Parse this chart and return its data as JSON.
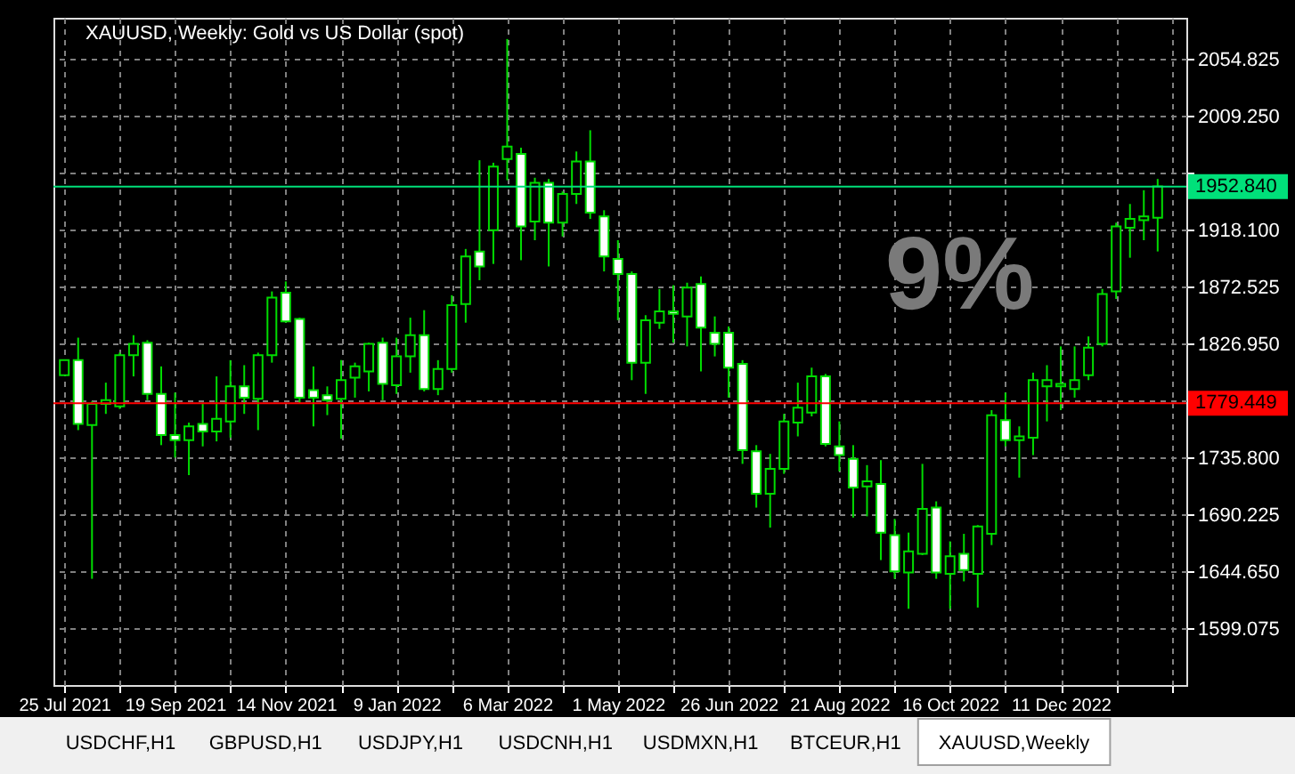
{
  "chart_data": {
    "type": "candlestick",
    "title": "XAUUSD, Weekly: Gold vs US Dollar (spot)",
    "color": "#00dc00",
    "x": [
      "2021-07-25",
      "2021-08-01",
      "2021-08-08",
      "2021-08-15",
      "2021-08-22",
      "2021-08-29",
      "2021-09-05",
      "2021-09-12",
      "2021-09-19",
      "2021-09-26",
      "2021-10-03",
      "2021-10-10",
      "2021-10-17",
      "2021-10-24",
      "2021-10-31",
      "2021-11-07",
      "2021-11-14",
      "2021-11-21",
      "2021-11-28",
      "2021-12-05",
      "2021-12-12",
      "2021-12-19",
      "2021-12-26",
      "2022-01-02",
      "2022-01-09",
      "2022-01-16",
      "2022-01-23",
      "2022-01-30",
      "2022-02-06",
      "2022-02-13",
      "2022-02-20",
      "2022-02-27",
      "2022-03-06",
      "2022-03-13",
      "2022-03-20",
      "2022-03-27",
      "2022-04-03",
      "2022-04-10",
      "2022-04-17",
      "2022-04-24",
      "2022-05-01",
      "2022-05-08",
      "2022-05-15",
      "2022-05-22",
      "2022-05-29",
      "2022-06-05",
      "2022-06-12",
      "2022-06-19",
      "2022-06-26",
      "2022-07-03",
      "2022-07-10",
      "2022-07-17",
      "2022-07-24",
      "2022-07-31",
      "2022-08-07",
      "2022-08-14",
      "2022-08-21",
      "2022-08-28",
      "2022-09-04",
      "2022-09-11",
      "2022-09-18",
      "2022-09-25",
      "2022-10-02",
      "2022-10-09",
      "2022-10-16",
      "2022-10-23",
      "2022-10-30",
      "2022-11-06",
      "2022-11-13",
      "2022-11-20",
      "2022-11-27",
      "2022-12-04",
      "2022-12-11",
      "2022-12-18",
      "2022-12-25",
      "2023-01-01",
      "2023-01-08",
      "2023-01-15",
      "2023-01-22",
      "2023-01-29"
    ],
    "ohlc": [
      [
        1802,
        1814,
        1802,
        1814
      ],
      [
        1814,
        1832,
        1758,
        1763
      ],
      [
        1762,
        1781,
        1639,
        1779
      ],
      [
        1779,
        1796,
        1771,
        1782
      ],
      [
        1777,
        1820,
        1775,
        1818
      ],
      [
        1818,
        1834,
        1801,
        1827
      ],
      [
        1828,
        1830,
        1782,
        1787
      ],
      [
        1787,
        1809,
        1746,
        1754
      ],
      [
        1754,
        1788,
        1736,
        1750
      ],
      [
        1750,
        1764,
        1722,
        1761
      ],
      [
        1763,
        1780,
        1745,
        1757
      ],
      [
        1757,
        1801,
        1749,
        1767
      ],
      [
        1765,
        1814,
        1752,
        1793
      ],
      [
        1793,
        1810,
        1771,
        1784
      ],
      [
        1783,
        1820,
        1758,
        1818
      ],
      [
        1818,
        1869,
        1812,
        1864
      ],
      [
        1868,
        1877,
        1844,
        1845
      ],
      [
        1847,
        1848,
        1779,
        1784
      ],
      [
        1790,
        1809,
        1761,
        1784
      ],
      [
        1786,
        1793,
        1770,
        1782
      ],
      [
        1783,
        1814,
        1751,
        1798
      ],
      [
        1800,
        1812,
        1784,
        1809
      ],
      [
        1805,
        1828,
        1789,
        1827
      ],
      [
        1828,
        1832,
        1782,
        1795
      ],
      [
        1794,
        1832,
        1787,
        1817
      ],
      [
        1817,
        1848,
        1804,
        1834
      ],
      [
        1834,
        1854,
        1789,
        1791
      ],
      [
        1791,
        1814,
        1786,
        1807
      ],
      [
        1807,
        1866,
        1804,
        1858
      ],
      [
        1859,
        1903,
        1844,
        1897
      ],
      [
        1901,
        1974,
        1878,
        1889
      ],
      [
        1918,
        1972,
        1891,
        1969
      ],
      [
        1975,
        2071,
        1958,
        1985
      ],
      [
        1979,
        1984,
        1894,
        1921
      ],
      [
        1925,
        1960,
        1910,
        1956
      ],
      [
        1956,
        1959,
        1889,
        1924
      ],
      [
        1924,
        1949,
        1913,
        1947
      ],
      [
        1947,
        1981,
        1939,
        1973
      ],
      [
        1973,
        1998,
        1927,
        1932
      ],
      [
        1929,
        1934,
        1885,
        1897
      ],
      [
        1895,
        1910,
        1846,
        1883
      ],
      [
        1883,
        1885,
        1798,
        1812
      ],
      [
        1812,
        1850,
        1787,
        1846
      ],
      [
        1844,
        1871,
        1839,
        1853
      ],
      [
        1853,
        1874,
        1828,
        1851
      ],
      [
        1849,
        1876,
        1825,
        1872
      ],
      [
        1875,
        1881,
        1805,
        1840
      ],
      [
        1836,
        1849,
        1817,
        1827
      ],
      [
        1836,
        1841,
        1784,
        1808
      ],
      [
        1811,
        1814,
        1731,
        1742
      ],
      [
        1741,
        1746,
        1696,
        1707
      ],
      [
        1707,
        1739,
        1680,
        1727
      ],
      [
        1727,
        1771,
        1723,
        1765
      ],
      [
        1764,
        1796,
        1753,
        1776
      ],
      [
        1772,
        1808,
        1769,
        1801
      ],
      [
        1801,
        1803,
        1745,
        1747
      ],
      [
        1745,
        1765,
        1725,
        1738
      ],
      [
        1735,
        1746,
        1688,
        1712
      ],
      [
        1713,
        1730,
        1689,
        1717
      ],
      [
        1715,
        1734,
        1654,
        1676
      ],
      [
        1674,
        1687,
        1639,
        1645
      ],
      [
        1644,
        1676,
        1615,
        1661
      ],
      [
        1659,
        1731,
        1658,
        1695
      ],
      [
        1696,
        1701,
        1639,
        1644
      ],
      [
        1643,
        1669,
        1615,
        1657
      ],
      [
        1659,
        1675,
        1637,
        1646
      ],
      [
        1643,
        1682,
        1616,
        1681
      ],
      [
        1675,
        1774,
        1666,
        1770
      ],
      [
        1766,
        1788,
        1745,
        1750
      ],
      [
        1750,
        1761,
        1720,
        1753
      ],
      [
        1752,
        1804,
        1738,
        1798
      ],
      [
        1793,
        1810,
        1765,
        1798
      ],
      [
        1793,
        1825,
        1774,
        1795
      ],
      [
        1791,
        1825,
        1784,
        1798
      ],
      [
        1802,
        1833,
        1798,
        1824
      ],
      [
        1827,
        1871,
        1825,
        1867
      ],
      [
        1869,
        1924,
        1863,
        1921
      ],
      [
        1920,
        1939,
        1896,
        1927
      ],
      [
        1926,
        1950,
        1910,
        1929
      ],
      [
        1928,
        1959,
        1901,
        1953
      ]
    ],
    "xlim": [
      "2021-07-24",
      "2023-02-08"
    ],
    "xticks": [
      {
        "value": "2021-07-25",
        "label": "25 Jul 2021"
      },
      {
        "value": "2021-08-22",
        "label": null
      },
      {
        "value": "2021-09-19",
        "label": "19 Sep 2021"
      },
      {
        "value": "2021-10-17",
        "label": null
      },
      {
        "value": "2021-11-14",
        "label": "14 Nov 2021"
      },
      {
        "value": "2021-12-12",
        "label": null
      },
      {
        "value": "2022-01-09",
        "label": "9 Jan 2022"
      },
      {
        "value": "2022-02-06",
        "label": null
      },
      {
        "value": "2022-03-06",
        "label": "6 Mar 2022"
      },
      {
        "value": "2022-04-03",
        "label": null
      },
      {
        "value": "2022-05-01",
        "label": "1 May 2022"
      },
      {
        "value": "2022-05-29",
        "label": null
      },
      {
        "value": "2022-06-26",
        "label": "26 Jun 2022"
      },
      {
        "value": "2022-07-24",
        "label": null
      },
      {
        "value": "2022-08-21",
        "label": "21 Aug 2022"
      },
      {
        "value": "2022-09-18",
        "label": null
      },
      {
        "value": "2022-10-16",
        "label": "16 Oct 2022"
      },
      {
        "value": "2022-11-13",
        "label": null
      },
      {
        "value": "2022-12-11",
        "label": "11 Dec 2022"
      },
      {
        "value": "2023-01-08",
        "label": null
      },
      {
        "value": "2023-02-05",
        "label": null
      }
    ],
    "ylim": [
      1554,
      2088
    ],
    "yticks": [
      1599.075,
      {
        "value": 1644.65,
        "label": "1644.650"
      },
      1690.225,
      {
        "value": 1735.8,
        "label": "1735.800"
      },
      {
        "value": 1781.375,
        "label": null
      },
      {
        "value": 1826.95,
        "label": "1826.950"
      },
      1872.525,
      {
        "value": 1918.1,
        "label": "1918.100"
      },
      {
        "value": 1963.675,
        "label": null
      },
      {
        "value": 2009.25,
        "label": "2009.250"
      },
      2054.825
    ],
    "grid": true,
    "ref_lines": [
      {
        "axis": "y",
        "value": 1952.84,
        "label": "1952.840",
        "color": "#00e07a"
      },
      {
        "axis": "y",
        "value": 1779.449,
        "label": "1779.449",
        "color": "#ff0000"
      }
    ],
    "annotations": [
      "9%",
      "USDCHF,H1",
      "GBPUSD,H1",
      "USDJPY,H1",
      "USDCNH,H1",
      "USDMXN,H1",
      "BTCEUR,H1",
      "XAUUSD,Weekly"
    ]
  }
}
